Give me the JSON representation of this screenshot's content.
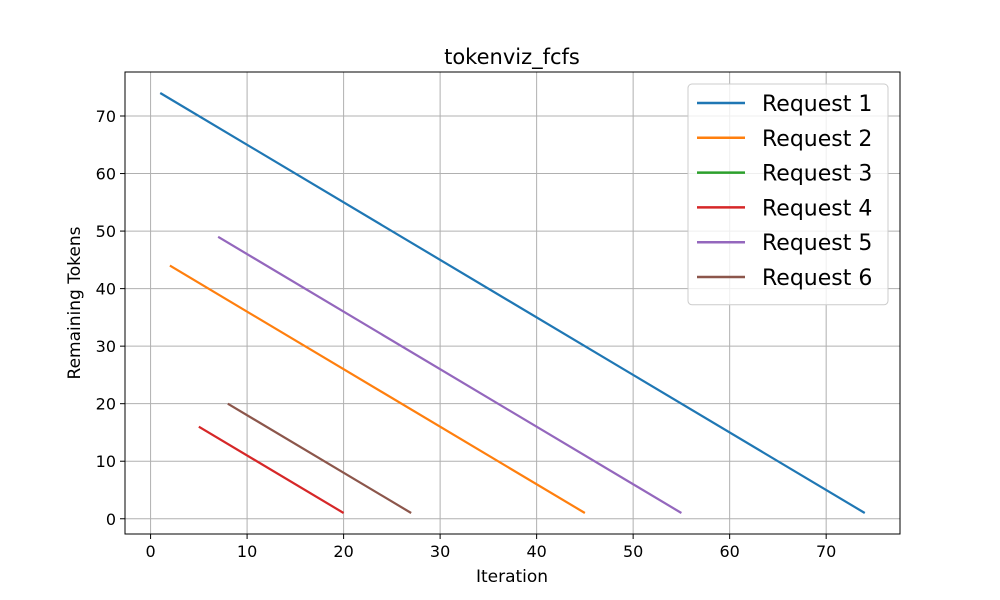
{
  "chart_data": {
    "type": "line",
    "title": "tokenviz_fcfs",
    "xlabel": "Iteration",
    "ylabel": "Remaining Tokens",
    "xlim": [
      -2.65,
      77.65
    ],
    "ylim": [
      -2.65,
      77.65
    ],
    "xticks": [
      0,
      10,
      20,
      30,
      40,
      50,
      60,
      70
    ],
    "yticks": [
      0,
      10,
      20,
      30,
      40,
      50,
      60,
      70
    ],
    "grid": true,
    "legend_position": "top-right",
    "series": [
      {
        "name": "Request 1",
        "color": "#1f77b4",
        "x": [
          1,
          74
        ],
        "y": [
          74,
          1
        ]
      },
      {
        "name": "Request 2",
        "color": "#ff7f0e",
        "x": [
          2,
          45
        ],
        "y": [
          44,
          1
        ]
      },
      {
        "name": "Request 3",
        "color": "#2ca02c",
        "x": [],
        "y": []
      },
      {
        "name": "Request 4",
        "color": "#d62728",
        "x": [
          5,
          20
        ],
        "y": [
          16,
          1
        ]
      },
      {
        "name": "Request 5",
        "color": "#9467bd",
        "x": [
          7,
          55
        ],
        "y": [
          49,
          1
        ]
      },
      {
        "name": "Request 6",
        "color": "#8c564b",
        "x": [
          8,
          27
        ],
        "y": [
          20,
          1
        ]
      }
    ]
  }
}
